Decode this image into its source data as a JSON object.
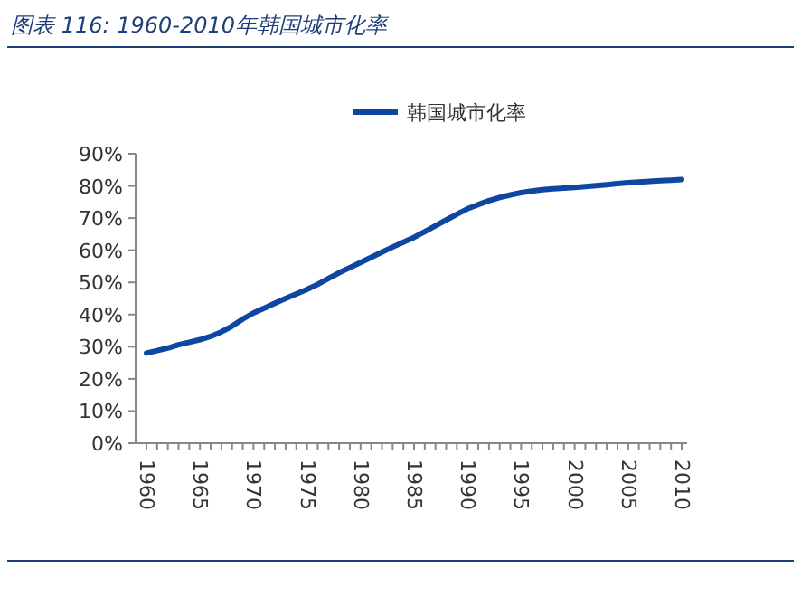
{
  "chart_data": {
    "type": "line",
    "title": "图表 116: 1960-2010年韩国城市化率",
    "categories": [
      "1960",
      null,
      null,
      null,
      null,
      "1965",
      null,
      null,
      null,
      null,
      "1970",
      null,
      null,
      null,
      null,
      "1975",
      null,
      null,
      null,
      null,
      "1980",
      null,
      null,
      null,
      null,
      "1985",
      null,
      null,
      null,
      null,
      "1990",
      null,
      null,
      null,
      null,
      "1995",
      null,
      null,
      null,
      null,
      "2000",
      null,
      null,
      null,
      null,
      "2005",
      null,
      null,
      null,
      null,
      "2010"
    ],
    "series": [
      {
        "name": "韩国城市化率",
        "color": "#0d47a1",
        "values": [
          28.0,
          28.8,
          29.6,
          30.6,
          31.4,
          32.2,
          33.2,
          34.6,
          36.4,
          38.6,
          40.5,
          42.0,
          43.5,
          45.0,
          46.4,
          47.8,
          49.4,
          51.2,
          53.0,
          54.6,
          56.2,
          57.8,
          59.4,
          61.0,
          62.5,
          64.0,
          65.8,
          67.6,
          69.4,
          71.2,
          72.9,
          74.2,
          75.4,
          76.4,
          77.2,
          77.9,
          78.4,
          78.8,
          79.1,
          79.3,
          79.5,
          79.8,
          80.1,
          80.4,
          80.7,
          81.0,
          81.2,
          81.4,
          81.6,
          81.8,
          82.0
        ]
      }
    ],
    "ylim": [
      0,
      90
    ],
    "yticks": [
      {
        "value": 0,
        "label": "0%"
      },
      {
        "value": 10,
        "label": "10%"
      },
      {
        "value": 20,
        "label": "20%"
      },
      {
        "value": 30,
        "label": "30%"
      },
      {
        "value": 40,
        "label": "40%"
      },
      {
        "value": 50,
        "label": "50%"
      },
      {
        "value": 60,
        "label": "60%"
      },
      {
        "value": 70,
        "label": "70%"
      },
      {
        "value": 80,
        "label": "80%"
      },
      {
        "value": 90,
        "label": "90%"
      }
    ],
    "legend": "top",
    "marker": "none",
    "line_style": "solid"
  }
}
